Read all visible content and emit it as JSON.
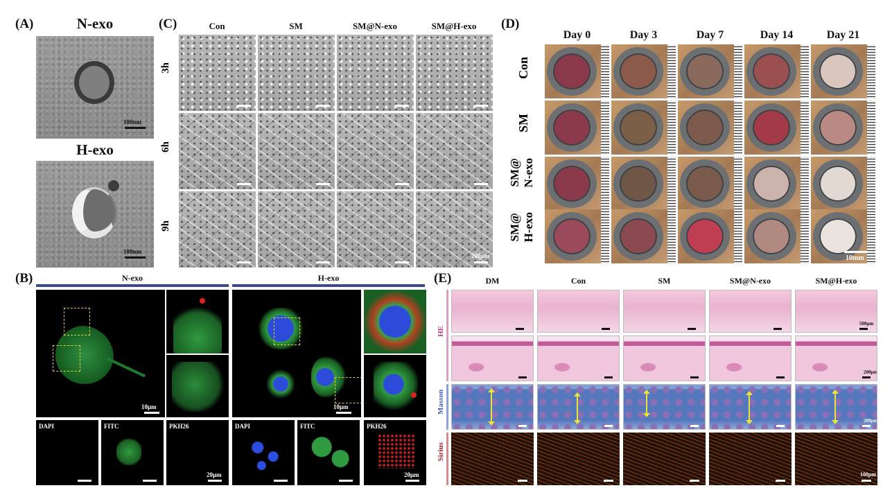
{
  "panelA": {
    "label": "(A)",
    "n_title": "N-exo",
    "h_title": "H-exo",
    "scale_n": "100nm",
    "scale_h": "100nm"
  },
  "panelB": {
    "label": "(B)",
    "n_header": "N-exo",
    "h_header": "H-exo",
    "scale_main_n": "10μm",
    "scale_main_h": "10μm",
    "channels": [
      "DAPI",
      "FITC",
      "PKH26"
    ],
    "scale_small_n": "20μm",
    "scale_small_h": "20μm"
  },
  "panelC": {
    "label": "(C)",
    "columns": [
      "Con",
      "SM",
      "SM@N-exo",
      "SM@H-exo"
    ],
    "rows": [
      "3h",
      "6h",
      "9h"
    ],
    "scale": "200μm"
  },
  "panelD": {
    "label": "(D)",
    "columns": [
      "Day 0",
      "Day 3",
      "Day 7",
      "Day 14",
      "Day 21"
    ],
    "rows": [
      "Con",
      "SM",
      "SM@\nN-exo",
      "SM@\nH-exo"
    ],
    "scale": "10mm"
  },
  "panelE": {
    "label": "(E)",
    "columns": [
      "DM",
      "Con",
      "SM",
      "SM@N-exo",
      "SM@H-exo"
    ],
    "rows": [
      "HE",
      "Masson",
      "Sirius"
    ],
    "scale_he": "500μm",
    "scale_he_zoom": "200μm",
    "scale_masson": "200μm",
    "scale_sirius": "100μm",
    "colors": {
      "he": "#c0417f",
      "masson": "#3f64b8",
      "sirius": "#b3262c",
      "border_he": "#d9a1bf"
    }
  }
}
